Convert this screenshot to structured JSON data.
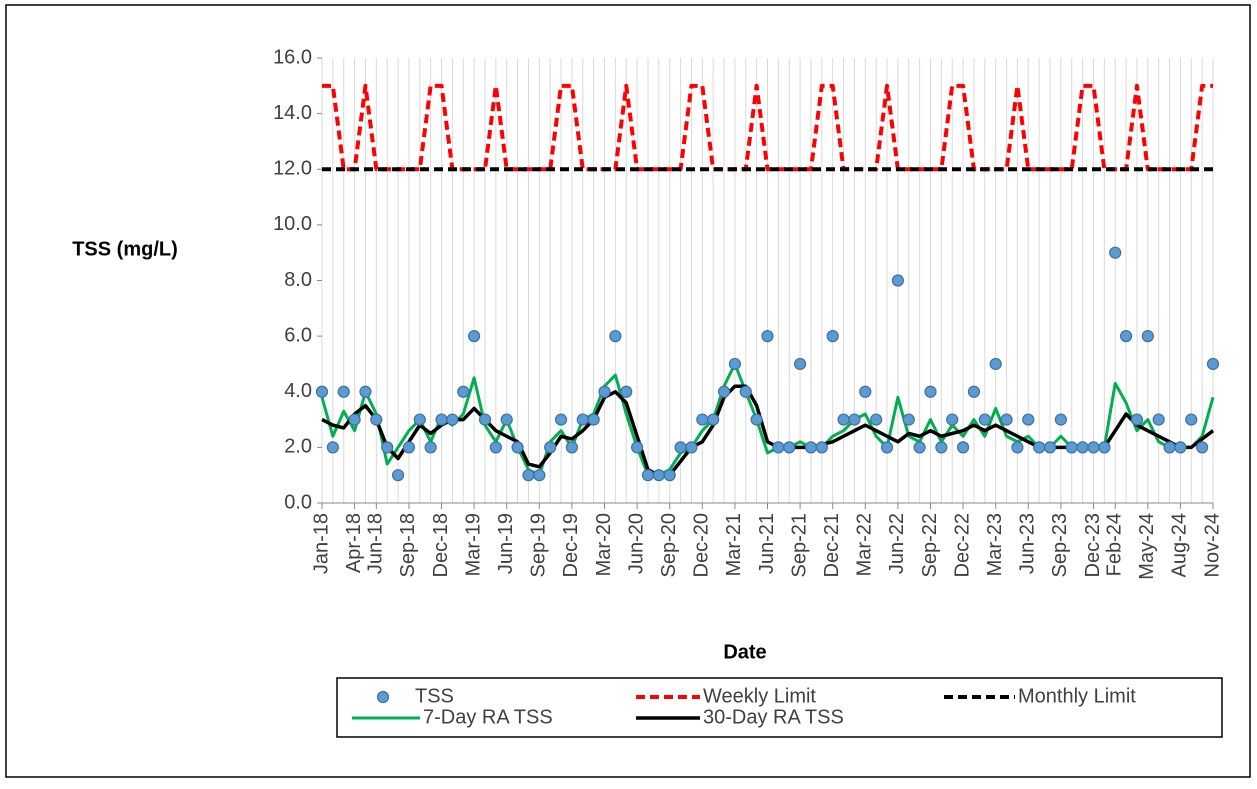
{
  "chart_data": {
    "type": "line",
    "y_label": "TSS (mg/L)",
    "x_label": "Date",
    "categories": [
      "Jan-18",
      null,
      null,
      "Apr-18",
      null,
      "Jun-18",
      null,
      null,
      "Sep-18",
      null,
      null,
      "Dec-18",
      null,
      null,
      "Mar-19",
      null,
      null,
      "Jun-19",
      null,
      null,
      "Sep-19",
      null,
      null,
      "Dec-19",
      null,
      null,
      "Mar-20",
      null,
      null,
      "Jun-20",
      null,
      null,
      "Sep-20",
      null,
      null,
      "Dec-20",
      null,
      null,
      "Mar-21",
      null,
      null,
      "Jun-21",
      null,
      null,
      "Sep-21",
      null,
      null,
      "Dec-21",
      null,
      null,
      "Mar-22",
      null,
      null,
      "Jun-22",
      null,
      null,
      "Sep-22",
      null,
      null,
      "Dec-22",
      null,
      null,
      "Mar-23",
      null,
      null,
      "Jun-23",
      null,
      null,
      "Sep-23",
      null,
      null,
      "Dec-23",
      null,
      "Feb-24",
      null,
      null,
      "May-24",
      null,
      null,
      "Aug-24",
      null,
      null,
      "Nov-24"
    ],
    "ylim": [
      0,
      16
    ],
    "yticks": [
      {
        "value": 0,
        "label": "0.0"
      },
      {
        "value": 2,
        "label": "2.0"
      },
      {
        "value": 4,
        "label": "4.0"
      },
      {
        "value": 6,
        "label": "6.0"
      },
      {
        "value": 8,
        "label": "8.0"
      },
      {
        "value": 10,
        "label": "10.0"
      },
      {
        "value": 12,
        "label": "12.0"
      },
      {
        "value": 14,
        "label": "14.0"
      },
      {
        "value": 16,
        "label": "16.0"
      }
    ],
    "grid": "vertical",
    "legend": "bottom",
    "series": [
      {
        "name": "TSS",
        "color": "#5b9bd5",
        "style": "marker",
        "values": [
          4,
          2,
          4,
          3,
          4,
          3,
          2,
          1,
          2,
          3,
          2,
          3,
          3,
          4,
          6,
          3,
          2,
          3,
          2,
          1,
          1,
          2,
          3,
          2,
          3,
          3,
          4,
          6,
          4,
          2,
          1,
          1,
          1,
          2,
          2,
          3,
          3,
          4,
          5,
          4,
          3,
          6,
          2,
          2,
          5,
          2,
          2,
          6,
          3,
          3,
          4,
          3,
          2,
          8,
          3,
          2,
          4,
          2,
          3,
          2,
          4,
          3,
          5,
          3,
          2,
          3,
          2,
          2,
          3,
          2,
          2,
          2,
          2,
          9,
          6,
          3,
          6,
          3,
          2,
          2,
          3,
          2,
          5
        ]
      },
      {
        "name": "Weekly Limit",
        "color": "#ff0000",
        "style": "dashed",
        "values": [
          15,
          15,
          12,
          12,
          15,
          12,
          12,
          12,
          12,
          12,
          15,
          15,
          12,
          12,
          12,
          12,
          15,
          12,
          12,
          12,
          12,
          12,
          15,
          15,
          12,
          12,
          12,
          12,
          15,
          12,
          12,
          12,
          12,
          12,
          15,
          15,
          12,
          12,
          12,
          12,
          15,
          12,
          12,
          12,
          12,
          12,
          15,
          15,
          12,
          12,
          12,
          12,
          15,
          12,
          12,
          12,
          12,
          12,
          15,
          15,
          12,
          12,
          12,
          12,
          15,
          12,
          12,
          12,
          12,
          12,
          15,
          15,
          12,
          12,
          12,
          15,
          12,
          12,
          12,
          12,
          12,
          15,
          15
        ]
      },
      {
        "name": "Monthly Limit",
        "color": "#000000",
        "style": "dashed",
        "values": [
          12,
          12,
          12,
          12,
          12,
          12,
          12,
          12,
          12,
          12,
          12,
          12,
          12,
          12,
          12,
          12,
          12,
          12,
          12,
          12,
          12,
          12,
          12,
          12,
          12,
          12,
          12,
          12,
          12,
          12,
          12,
          12,
          12,
          12,
          12,
          12,
          12,
          12,
          12,
          12,
          12,
          12,
          12,
          12,
          12,
          12,
          12,
          12,
          12,
          12,
          12,
          12,
          12,
          12,
          12,
          12,
          12,
          12,
          12,
          12,
          12,
          12,
          12,
          12,
          12,
          12,
          12,
          12,
          12,
          12,
          12,
          12,
          12,
          12,
          12,
          12,
          12,
          12,
          12,
          12,
          12,
          12,
          12
        ]
      },
      {
        "name": "7-Day RA TSS",
        "color": "#00b050",
        "style": "solid",
        "values": [
          3.8,
          2.4,
          3.3,
          2.6,
          4,
          3.2,
          1.4,
          2,
          2.6,
          3,
          2.2,
          3.1,
          2.8,
          3.2,
          4.5,
          2.8,
          2.2,
          3,
          2,
          1.2,
          1,
          2.2,
          2.6,
          2,
          3,
          3.2,
          4.2,
          4.6,
          3.2,
          2,
          1,
          1,
          1.2,
          1.8,
          2,
          2.6,
          3,
          4.2,
          5,
          4,
          3,
          1.8,
          2,
          2,
          2.2,
          2,
          2,
          2.4,
          2.6,
          3,
          3.2,
          2.4,
          2,
          3.8,
          2.4,
          2.2,
          3,
          2.2,
          2.8,
          2.4,
          3,
          2.4,
          3.4,
          2.4,
          2.2,
          2.4,
          2,
          2,
          2.4,
          2,
          2,
          2,
          2,
          4.3,
          3.6,
          2.6,
          3,
          2.2,
          2,
          2,
          2,
          2.4,
          3.8
        ]
      },
      {
        "name": "30-Day RA TSS",
        "color": "#000000",
        "style": "solid",
        "values": [
          3,
          2.8,
          2.7,
          3.2,
          3.5,
          3,
          2,
          1.6,
          2.2,
          2.8,
          2.5,
          2.8,
          3,
          3,
          3.4,
          3,
          2.6,
          2.4,
          2.2,
          1.4,
          1.3,
          1.8,
          2.4,
          2.3,
          2.6,
          3,
          3.8,
          4,
          3.6,
          2.4,
          1.2,
          1,
          1,
          1.5,
          2,
          2.2,
          2.8,
          3.8,
          4.2,
          4.2,
          3.5,
          2.2,
          2,
          2,
          2,
          2,
          2.1,
          2.2,
          2.4,
          2.6,
          2.8,
          2.6,
          2.4,
          2.2,
          2.5,
          2.4,
          2.6,
          2.4,
          2.5,
          2.6,
          2.8,
          2.6,
          2.8,
          2.6,
          2.4,
          2.2,
          2,
          2,
          2,
          2,
          2,
          2,
          2,
          2.6,
          3.2,
          2.8,
          2.6,
          2.4,
          2.2,
          2,
          2,
          2.3,
          2.6
        ]
      }
    ]
  }
}
